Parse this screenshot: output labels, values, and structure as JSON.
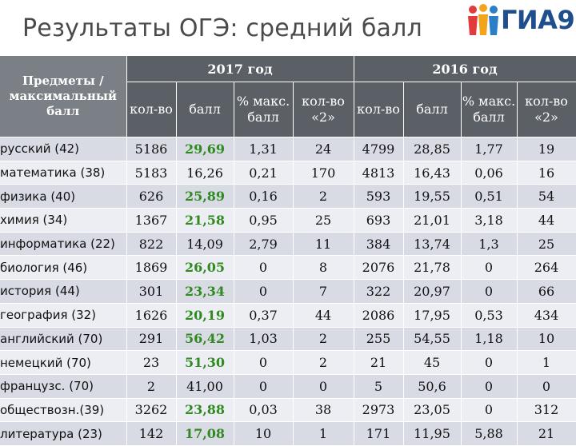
{
  "title": "Результаты ОГЭ: средний балл",
  "logo": {
    "text": "ГИА9",
    "icon": "people-figures-icon"
  },
  "header": {
    "subject": "Предметы / максимальный балл",
    "year_2017": "2017 год",
    "year_2016": "2016 год",
    "cols": [
      "кол-во",
      "балл",
      "% макс. балл",
      "кол-во «2»",
      "кол-во",
      "балл",
      "% макс. балл",
      "кол-во «2»"
    ]
  },
  "rows": [
    {
      "subject": "русский (42)",
      "c": [
        "5186",
        "29,69",
        "1,31",
        "24",
        "4799",
        "28,85",
        "1,77",
        "19"
      ],
      "green": true
    },
    {
      "subject": "математика (38)",
      "c": [
        "5183",
        "16,26",
        "0,21",
        "170",
        "4813",
        "16,43",
        "0,06",
        "16"
      ],
      "green": false
    },
    {
      "subject": "физика (40)",
      "c": [
        "626",
        "25,89",
        "0,16",
        "2",
        "593",
        "19,55",
        "0,51",
        "54"
      ],
      "green": true
    },
    {
      "subject": "химия (34)",
      "c": [
        "1367",
        "21,58",
        "0,95",
        "25",
        "693",
        "21,01",
        "3,18",
        "44"
      ],
      "green": true
    },
    {
      "subject": "информатика (22)",
      "c": [
        "822",
        "14,09",
        "2,79",
        "11",
        "384",
        "13,74",
        "1,3",
        "25"
      ],
      "green": false
    },
    {
      "subject": "биология (46)",
      "c": [
        "1869",
        "26,05",
        "0",
        "8",
        "2076",
        "21,78",
        "0",
        "264"
      ],
      "green": true
    },
    {
      "subject": "история (44)",
      "c": [
        "301",
        "23,34",
        "0",
        "7",
        "322",
        "20,97",
        "0",
        "66"
      ],
      "green": true
    },
    {
      "subject": "география (32)",
      "c": [
        "1626",
        "20,19",
        "0,37",
        "44",
        "2086",
        "17,95",
        "0,53",
        "434"
      ],
      "green": true
    },
    {
      "subject": "английский (70)",
      "c": [
        "291",
        "56,42",
        "1,03",
        "2",
        "255",
        "54,55",
        "1,18",
        "10"
      ],
      "green": true
    },
    {
      "subject": "немецкий (70)",
      "c": [
        "23",
        "51,30",
        "0",
        "2",
        "21",
        "45",
        "0",
        "1"
      ],
      "green": true
    },
    {
      "subject": "французс. (70)",
      "c": [
        "2",
        "41,00",
        "0",
        "0",
        "5",
        "50,6",
        "0",
        "0"
      ],
      "green": false
    },
    {
      "subject": "обществозн.(39)",
      "c": [
        "3262",
        "23,88",
        "0,03",
        "38",
        "2973",
        "23,05",
        "0",
        "312"
      ],
      "green": true
    },
    {
      "subject": "литература (23)",
      "c": [
        "142",
        "17,08",
        "10",
        "1",
        "171",
        "11,95",
        "5,88",
        "21"
      ],
      "green": true
    }
  ],
  "colors": {
    "header_bg": "#5b5f66",
    "row_odd": "#d8dae4",
    "row_even": "#eceef3",
    "highlight": "#2f8a1f",
    "logo_blue": "#1f4e8c"
  }
}
